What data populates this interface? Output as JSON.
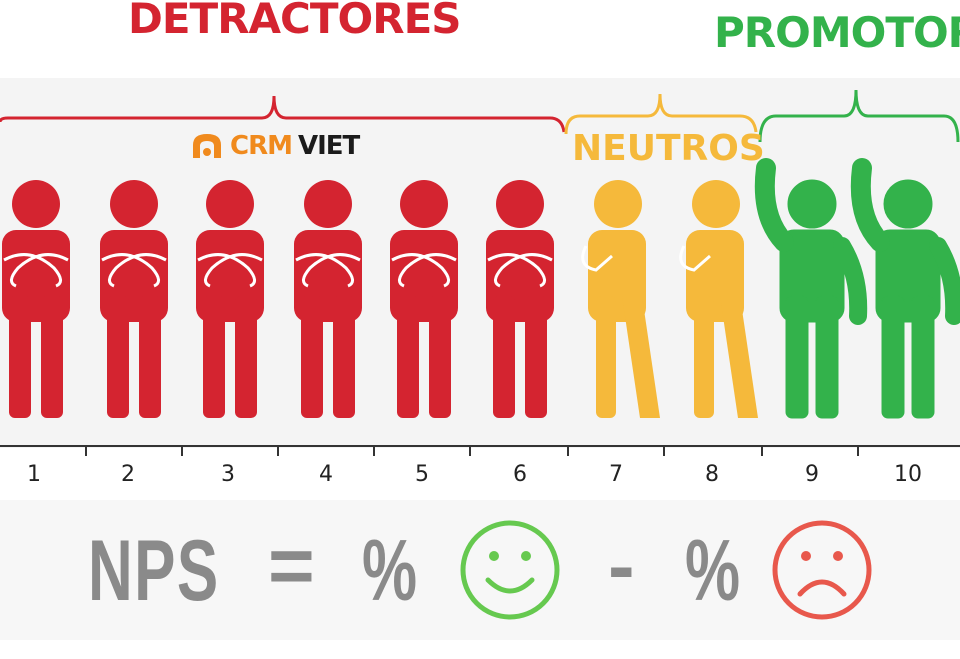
{
  "titles": {
    "detractores": "DETRACTORES",
    "promotores": "PROMOTOR",
    "neutros": "NEUTROS"
  },
  "logo": {
    "crm": "CRM",
    "viet": "VIET",
    "icon": "crmviet-logo-icon"
  },
  "scale": [
    "1",
    "2",
    "3",
    "4",
    "5",
    "6",
    "7",
    "8",
    "9",
    "10"
  ],
  "formula": {
    "nps": "NPS",
    "equals": "=",
    "percent_promoters": "%",
    "minus": "-",
    "percent_detractors": "%",
    "happy_icon": "smiley-face-icon",
    "sad_icon": "sad-face-icon"
  },
  "colors": {
    "detractor": "#d42430",
    "neutral": "#f5b93b",
    "promoter": "#33b24b",
    "formula_text": "#8a8a8a",
    "happy_face": "#66c94f",
    "sad_face": "#e8584c"
  }
}
